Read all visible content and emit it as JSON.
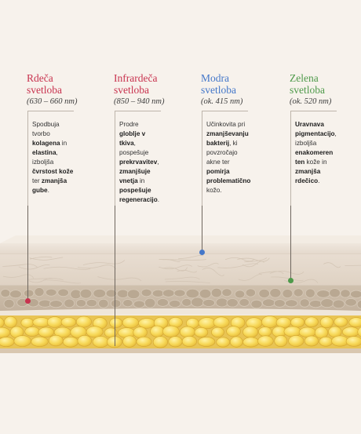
{
  "columns": [
    {
      "title_line1": "Rdeča",
      "title_line2": "svetloba",
      "range": "(630 – 660 nm)",
      "color": "#c8324e",
      "desc": [
        {
          "plain": "Spodbuja"
        },
        {
          "plain": "tvorbo"
        },
        {
          "bold": "kolagena",
          "plain": " in"
        },
        {
          "bold": "elastina",
          "plain": ","
        },
        {
          "plain": "izboljša"
        },
        {
          "bold": "čvrstost kože"
        },
        {
          "plain": "ter ",
          "bold": "zmanjša"
        },
        {
          "bold": "gube",
          "plain": "."
        }
      ]
    },
    {
      "title_line1": "Infrardeča",
      "title_line2": "svetloba",
      "range": "(850 – 940 nm)",
      "color": "#c8324e",
      "desc": [
        {
          "plain": "Prodre"
        },
        {
          "bold": "globlje v"
        },
        {
          "bold": "tkiva",
          "plain": ","
        },
        {
          "plain": "pospešuje"
        },
        {
          "bold": "prekrvavitev",
          "plain": ","
        },
        {
          "bold": "zmanjšuje"
        },
        {
          "bold": "vnetja",
          "plain": " in"
        },
        {
          "bold": "pospešuje"
        },
        {
          "bold": "regeneracijo",
          "plain": "."
        }
      ]
    },
    {
      "title_line1": "Modra",
      "title_line2": "svetloba",
      "range": "(ok. 415 nm)",
      "color": "#4477c9",
      "desc": [
        {
          "plain": "Učinkovita pri"
        },
        {
          "bold": "zmanjševanju"
        },
        {
          "bold": "bakterij",
          "plain": ", ki"
        },
        {
          "plain": "povzročajo"
        },
        {
          "plain": "akne ter"
        },
        {
          "bold": "pomirja"
        },
        {
          "bold": "problematično"
        },
        {
          "plain": "kožo."
        }
      ]
    },
    {
      "title_line1": "Zelena",
      "title_line2": "svetloba",
      "range": "(ok. 520 nm)",
      "color": "#4e9a4a",
      "desc": [
        {
          "bold": "Uravnava"
        },
        {
          "bold": "pigmentacijo",
          "plain": ","
        },
        {
          "plain": "izboljša"
        },
        {
          "bold": "enakomeren"
        },
        {
          "bold": "ten",
          "plain": " kože in"
        },
        {
          "bold": "zmanjša"
        },
        {
          "bold": "rdečico",
          "plain": "."
        }
      ]
    }
  ]
}
